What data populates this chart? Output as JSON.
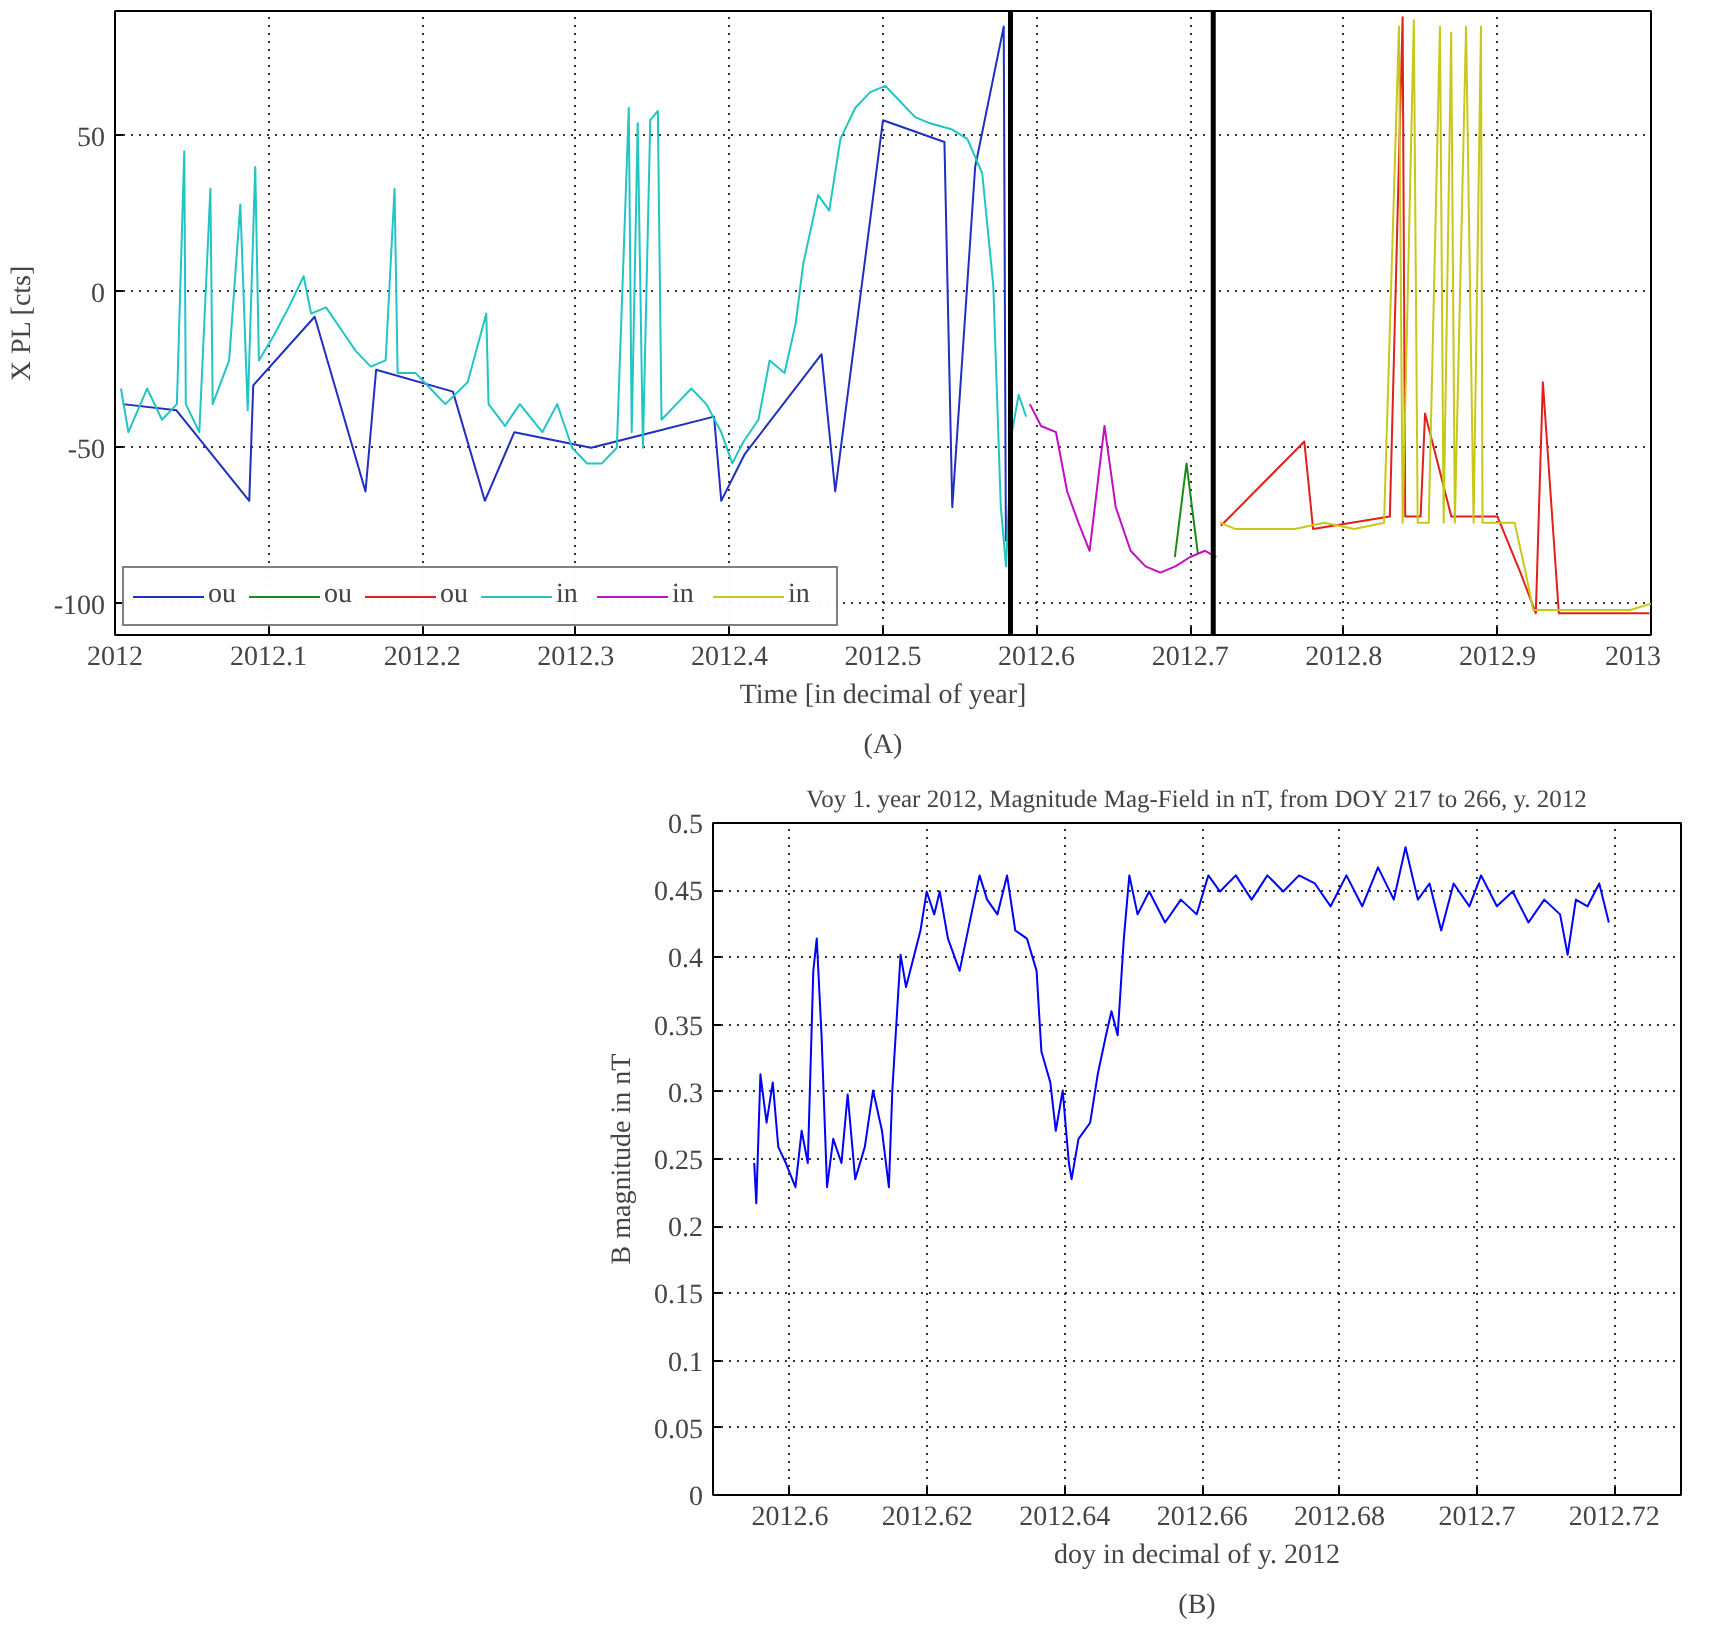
{
  "chart_data": [
    {
      "type": "line",
      "xlabel": "Time [in decimal of year]",
      "ylabel": "X PL [cts]",
      "annotations": [
        "(A)"
      ],
      "xlim": [
        2012,
        2013
      ],
      "ylim": [
        -110,
        90
      ],
      "xticks": [
        2012,
        2012.1,
        2012.2,
        2012.3,
        2012.4,
        2012.5,
        2012.6,
        2012.7,
        2012.8,
        2012.9,
        2013
      ],
      "yticks": [
        -100,
        -50,
        0,
        50
      ],
      "grid": true,
      "legend": "bottom left",
      "line_style": "solid",
      "ref_lines": [
        {
          "axis": "x",
          "value": 2012.583,
          "color": "#000000"
        },
        {
          "axis": "x",
          "value": 2012.715,
          "color": "#000000"
        }
      ],
      "series": [
        {
          "name": "ou",
          "color": "#1f2fbf",
          "x": [
            2012.005,
            2012.04,
            2012.0874,
            2012.09,
            2012.13,
            2012.1631,
            2012.17,
            2012.22,
            2012.2408,
            2012.26,
            2012.31,
            2012.35,
            2012.39,
            2012.3947,
            2012.41,
            2012.46,
            2012.4689,
            2012.5,
            2012.54,
            2012.5451,
            2012.56,
            2012.5786,
            2012.58
          ],
          "values": [
            -36,
            -38,
            -67,
            -30,
            -8,
            -64,
            -25,
            -32,
            -67,
            -45,
            -50,
            -45,
            -40,
            -67,
            -52,
            -20,
            -64,
            55,
            48,
            -69,
            40,
            85,
            -80
          ]
        },
        {
          "name": "ou",
          "color": "#1a8a1a",
          "x": [
            2012.69,
            2012.6976,
            2012.705
          ],
          "values": [
            -85,
            -55,
            -84
          ]
        },
        {
          "name": "ou",
          "color": "#e0201a",
          "x": [
            2012.72,
            2012.7743,
            2012.78,
            2012.83,
            2012.8383,
            2012.84,
            2012.85,
            2012.8529,
            2012.87,
            2012.9,
            2012.915,
            2012.925,
            2012.9296,
            2012.94,
            2012.999
          ],
          "values": [
            -75,
            -48,
            -76,
            -72,
            88,
            -72,
            -72,
            -39,
            -72,
            -72,
            -90,
            -103,
            -29,
            -103,
            -103
          ]
        },
        {
          "name": "in",
          "color": "#22c4c4",
          "x": [
            2012.0039,
            2012.0087,
            2012.0209,
            2012.0306,
            2012.0403,
            2012.0451,
            2012.0461,
            2012.0549,
            2012.0621,
            2012.0636,
            2012.0743,
            2012.0816,
            2012.0864,
            2012.0913,
            2012.0937,
            2012.1034,
            2012.1131,
            2012.1228,
            2012.1277,
            2012.1374,
            2012.1471,
            2012.1568,
            2012.1665,
            2012.1762,
            2012.182,
            2012.184,
            2012.1956,
            2012.2053,
            2012.215,
            2012.2296,
            2012.2417,
            2012.2432,
            2012.2539,
            2012.2636,
            2012.2782,
            2012.2879,
            2012.2976,
            2012.3073,
            2012.317,
            2012.3267,
            2012.3345,
            2012.3364,
            2012.3403,
            2012.3437,
            2012.3485,
            2012.3534,
            2012.3558,
            2012.3655,
            2012.3752,
            2012.385,
            2012.3947,
            2012.4019,
            2012.4092,
            2012.4189,
            2012.4262,
            2012.4359,
            2012.4432,
            2012.4481,
            2012.4578,
            2012.465,
            2012.4723,
            2012.482,
            2012.4917,
            2012.5015,
            2012.5112,
            2012.5209,
            2012.5306,
            2012.5451,
            2012.5549,
            2012.5646,
            2012.5718,
            2012.5767,
            2012.5801,
            2012.584,
            2012.5883,
            2012.5932
          ],
          "values": [
            -31,
            -45,
            -31,
            -41,
            -36,
            45,
            -36,
            -45,
            33,
            -36,
            -22,
            28,
            -38,
            40,
            -22,
            -14,
            -5,
            5,
            -7,
            -5,
            -12,
            -19,
            -24,
            -22,
            33,
            -26,
            -26,
            -31,
            -36,
            -29,
            -7,
            -36,
            -43,
            -36,
            -45,
            -36,
            -50,
            -55,
            -55,
            -50,
            59,
            -45,
            54,
            -50,
            55,
            58,
            -41,
            -36,
            -31,
            -36,
            -45,
            -55,
            -48,
            -41,
            -22,
            -26,
            -10,
            9,
            31,
            26,
            49,
            59,
            64,
            66,
            61,
            56,
            54,
            52,
            49,
            38,
            2,
            -69,
            -88,
            -45,
            -33,
            -40
          ]
        },
        {
          "name": "in",
          "color": "#c010c0",
          "x": [
            2012.5956,
            2012.6029,
            2012.6126,
            2012.6199,
            2012.6272,
            2012.6345,
            2012.6442,
            2012.6515,
            2012.6612,
            2012.6709,
            2012.6806,
            2012.6903,
            2012.7,
            2012.7097,
            2012.717
          ],
          "values": [
            -36,
            -43,
            -45,
            -64,
            -74,
            -83,
            -43,
            -69,
            -83,
            -88,
            -90,
            -88,
            -85,
            -83,
            -85
          ]
        },
        {
          "name": "in",
          "color": "#c8c81a",
          "x": [
            2012.7194,
            2012.7291,
            2012.7485,
            2012.768,
            2012.7874,
            2012.8068,
            2012.8262,
            2012.8359,
            2012.8383,
            2012.8456,
            2012.8481,
            2012.8553,
            2012.8626,
            2012.865,
            2012.8699,
            2012.8723,
            2012.8796,
            2012.8845,
            2012.8893,
            2012.8903,
            2012.899,
            2012.9112,
            2012.9184,
            2012.9233,
            2012.9379,
            2012.9621,
            2012.9864,
            2013.0
          ],
          "values": [
            -74,
            -76,
            -76,
            -76,
            -74,
            -76,
            -74,
            85,
            -74,
            87,
            -74,
            -74,
            85,
            -74,
            83,
            -74,
            85,
            -74,
            85,
            -74,
            -74,
            -74,
            -90,
            -102,
            -102,
            -102,
            -102,
            -100
          ]
        }
      ]
    },
    {
      "type": "line",
      "title": "Voy 1. year 2012, Magnitude Mag-Field in nT, from DOY 217 to 266, y. 2012",
      "xlabel": "doy in decimal of y. 2012",
      "ylabel": "B magnitude in nT",
      "annotations": [
        "(B)"
      ],
      "xlim": [
        2012.5888,
        2012.7297
      ],
      "ylim": [
        0,
        0.5
      ],
      "xticks": [
        2012.6,
        2012.62,
        2012.64,
        2012.66,
        2012.68,
        2012.7,
        2012.72
      ],
      "yticks": [
        0,
        0.05,
        0.1,
        0.15,
        0.2,
        0.25,
        0.3,
        0.35,
        0.4,
        0.45,
        0.5
      ],
      "grid": true,
      "line_style": "solid",
      "series": [
        {
          "color": "#0000ff",
          "x": [
            2012.5948,
            2012.5951,
            2012.5957,
            2012.5966,
            2012.5975,
            2012.5983,
            2012.5994,
            2012.6008,
            2012.6017,
            2012.6026,
            2012.6034,
            2012.6039,
            2012.6046,
            2012.6054,
            2012.6063,
            2012.6075,
            2012.6084,
            2012.6095,
            2012.6109,
            2012.6121,
            2012.6134,
            2012.6144,
            2012.6149,
            2012.6161,
            2012.6169,
            2012.6178,
            2012.619,
            2012.6199,
            2012.621,
            2012.6218,
            2012.623,
            2012.6247,
            2012.6264,
            2012.6276,
            2012.6287,
            2012.6302,
            2012.6316,
            2012.6328,
            2012.6345,
            2012.6359,
            2012.6366,
            2012.6379,
            2012.6387,
            2012.6397,
            2012.6406,
            2012.641,
            2012.642,
            2012.6437,
            2012.6448,
            2012.646,
            2012.6468,
            2012.6477,
            2012.6486,
            2012.6494,
            2012.6506,
            2012.6523,
            2012.6546,
            2012.6569,
            2012.6592,
            2012.6609,
            2012.6626,
            2012.6649,
            2012.6672,
            2012.6695,
            2012.6718,
            2012.6741,
            2012.6764,
            2012.6787,
            2012.681,
            2012.6833,
            2012.6856,
            2012.6879,
            2012.6896,
            2012.6914,
            2012.6931,
            2012.6948,
            2012.6966,
            2012.6989,
            2012.7006,
            2012.7029,
            2012.7052,
            2012.7075,
            2012.7098,
            2012.7121,
            2012.7132,
            2012.7144,
            2012.7161,
            2012.7178,
            2012.7192
          ],
          "values": [
            0.247,
            0.217,
            0.313,
            0.277,
            0.307,
            0.259,
            0.247,
            0.229,
            0.271,
            0.247,
            0.39,
            0.414,
            0.342,
            0.229,
            0.265,
            0.247,
            0.298,
            0.235,
            0.259,
            0.301,
            0.271,
            0.229,
            0.301,
            0.402,
            0.378,
            0.396,
            0.42,
            0.449,
            0.432,
            0.449,
            0.414,
            0.39,
            0.432,
            0.461,
            0.443,
            0.432,
            0.461,
            0.42,
            0.414,
            0.39,
            0.33,
            0.307,
            0.271,
            0.301,
            0.247,
            0.235,
            0.265,
            0.277,
            0.313,
            0.342,
            0.36,
            0.342,
            0.414,
            0.461,
            0.432,
            0.449,
            0.426,
            0.443,
            0.432,
            0.461,
            0.449,
            0.461,
            0.443,
            0.461,
            0.449,
            0.461,
            0.455,
            0.438,
            0.461,
            0.438,
            0.467,
            0.443,
            0.482,
            0.443,
            0.455,
            0.42,
            0.455,
            0.438,
            0.461,
            0.438,
            0.449,
            0.426,
            0.443,
            0.432,
            0.402,
            0.443,
            0.438,
            0.455,
            0.426
          ]
        }
      ]
    }
  ]
}
